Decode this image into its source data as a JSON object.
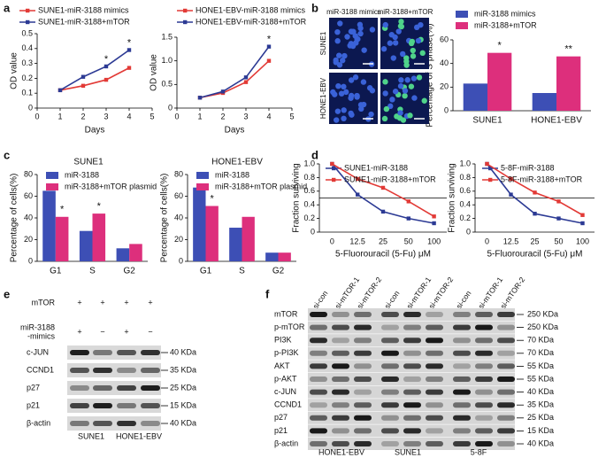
{
  "panel_labels": [
    "a",
    "b",
    "c",
    "d",
    "e",
    "f"
  ],
  "chart_data": [
    {
      "type": "line",
      "x": [
        1,
        2,
        3,
        4
      ],
      "xlim": [
        0,
        5
      ],
      "xticks": [
        0,
        1,
        2,
        3,
        4,
        5
      ],
      "ylim": [
        0,
        0.5
      ],
      "yticks": [
        0,
        0.1,
        0.2,
        0.3,
        0.4,
        0.5
      ],
      "x_label": "Days",
      "y_label": "OD value",
      "series": [
        {
          "name": "SUNE1-miR-3188 mimics",
          "color": "#e23a36",
          "values": [
            0.12,
            0.15,
            0.19,
            0.27
          ]
        },
        {
          "name": "SUNE1-miR-3188+mTOR",
          "color": "#2c3a94",
          "values": [
            0.12,
            0.21,
            0.28,
            0.39
          ]
        }
      ],
      "annotations": [
        {
          "text": "*",
          "series": 1,
          "index": 2
        },
        {
          "text": "*",
          "series": 1,
          "index": 3
        }
      ]
    },
    {
      "type": "line",
      "x": [
        1,
        2,
        3,
        4
      ],
      "xlim": [
        0,
        5
      ],
      "xticks": [
        0,
        1,
        2,
        3,
        4,
        5
      ],
      "ylim": [
        0,
        1.5
      ],
      "yticks": [
        0,
        0.5,
        {
          "value": 1,
          "label": "1.0"
        },
        1.5
      ],
      "x_label": "Days",
      "y_label": "OD value",
      "series": [
        {
          "name": "HONE1-EBV-miR-3188 mimics",
          "color": "#e23a36",
          "values": [
            0.22,
            0.32,
            0.55,
            1.0
          ]
        },
        {
          "name": "HONE1-EBV-miR-3188+mTOR",
          "color": "#2c3a94",
          "values": [
            0.22,
            0.35,
            0.65,
            1.3
          ]
        }
      ],
      "annotations": [
        {
          "text": "*",
          "series": 1,
          "index": 3
        }
      ]
    },
    {
      "type": "bar",
      "categories": [
        "SUNE1",
        "HONE1-EBV"
      ],
      "ylim": [
        0,
        60
      ],
      "yticks": [
        0,
        20,
        40,
        60
      ],
      "y_label": "Percentage of S phase(%)",
      "series": [
        {
          "name": "miR-3188 mimics",
          "color": "#3d4fb5",
          "values": [
            23,
            15
          ]
        },
        {
          "name": "miR-3188+mTOR",
          "color": "#dd2f7c",
          "values": [
            49,
            46
          ]
        }
      ],
      "annotations": [
        {
          "text": "*",
          "series": 1,
          "index": 0
        },
        {
          "text": "**",
          "series": 1,
          "index": 1
        }
      ]
    },
    {
      "type": "bar",
      "title": "SUNE1",
      "categories": [
        "G1",
        "S",
        "G2"
      ],
      "ylim": [
        0,
        80
      ],
      "yticks": [
        0,
        20,
        40,
        60,
        80
      ],
      "y_label": "Percentage of cells(%)",
      "series": [
        {
          "name": "miR-3188",
          "color": "#3d4fb5",
          "values": [
            65,
            28,
            12
          ]
        },
        {
          "name": "miR-3188+mTOR plasmid",
          "color": "#dd2f7c",
          "values": [
            41,
            44,
            16
          ]
        }
      ],
      "annotations": [
        {
          "text": "*",
          "series": 1,
          "index": 0
        },
        {
          "text": "*",
          "series": 1,
          "index": 1
        }
      ]
    },
    {
      "type": "bar",
      "title": "HONE1-EBV",
      "categories": [
        "G1",
        "S",
        "G2"
      ],
      "ylim": [
        0,
        80
      ],
      "yticks": [
        0,
        20,
        40,
        60,
        80
      ],
      "y_label": "Percentage of cells(%)",
      "series": [
        {
          "name": "miR-3188",
          "color": "#3d4fb5",
          "values": [
            68,
            31,
            8
          ]
        },
        {
          "name": "miR-3188+mTOR plasmid",
          "color": "#dd2f7c",
          "values": [
            51,
            41,
            8
          ]
        }
      ],
      "annotations": [
        {
          "text": "*",
          "series": 1,
          "index": 0
        }
      ]
    },
    {
      "type": "line",
      "categories": [
        "0",
        "12.5",
        "25",
        "50",
        "100"
      ],
      "ylim": [
        0,
        1
      ],
      "yticks": [
        0,
        0.2,
        0.4,
        0.6,
        0.8,
        {
          "value": 1,
          "label": "1.0"
        }
      ],
      "x_label": "5-Fluorouracil (5-Fu) μM",
      "y_label": "Fraction surviving",
      "reference_line": 0.5,
      "series": [
        {
          "name": "SUNE1-miR-3188",
          "color": "#2c3a94",
          "values": [
            1.0,
            0.55,
            0.3,
            0.2,
            0.13
          ]
        },
        {
          "name": "SUNE1-miR-3188+mTOR",
          "color": "#e23a36",
          "values": [
            1.0,
            0.78,
            0.65,
            0.45,
            0.23
          ]
        }
      ]
    },
    {
      "type": "line",
      "categories": [
        "0",
        "12.5",
        "25",
        "50",
        "100"
      ],
      "ylim": [
        0,
        1
      ],
      "yticks": [
        0,
        0.2,
        0.4,
        0.6,
        0.8,
        {
          "value": 1,
          "label": "1.0"
        }
      ],
      "x_label": "5-Fluorouracil (5-Fu) μM",
      "y_label": "Fraction surviving",
      "reference_line": 0.5,
      "series": [
        {
          "name": "5-8F-miR-3188",
          "color": "#2c3a94",
          "values": [
            1.0,
            0.55,
            0.27,
            0.2,
            0.13
          ]
        },
        {
          "name": "5-8F-miR-3188+mTOR",
          "color": "#e23a36",
          "values": [
            1.0,
            0.78,
            0.58,
            0.45,
            0.25
          ]
        }
      ]
    }
  ],
  "images": {
    "columns": [
      "miR-3188 mimics",
      "miR-3188+mTOR"
    ],
    "rows": [
      "SUNE1",
      "HONE1-EBV"
    ]
  },
  "blot_e": {
    "treatments": [
      {
        "label": [
          "mTOR"
        ],
        "signs": [
          "+",
          "+",
          "+",
          "+"
        ]
      },
      {
        "label": [
          "miR-3188",
          "-mimics"
        ],
        "signs": [
          "+",
          "−",
          "+",
          "−"
        ]
      }
    ],
    "proteins": [
      {
        "name": "c-JUN",
        "size": "40 KDa"
      },
      {
        "name": "CCND1",
        "size": "35 KDa"
      },
      {
        "name": "p27",
        "size": "25 KDa"
      },
      {
        "name": "p21",
        "size": "15 KDa"
      },
      {
        "name": "β-actin",
        "size": "40 KDa"
      }
    ],
    "cell_lines": [
      "SUNE1",
      "HONE1-EBV"
    ]
  },
  "blot_f": {
    "lanes": [
      "si-con",
      "si-mTOR-1",
      "si-mTOR-2",
      "si-con",
      "si-mTOR-1",
      "si-mTOR-2",
      "si-con",
      "si-mTOR-1",
      "si-mTOR-2"
    ],
    "proteins": [
      {
        "name": "mTOR",
        "size": "250 KDa"
      },
      {
        "name": "p-mTOR",
        "size": "250 KDa"
      },
      {
        "name": "PI3K",
        "size": "70 KDa"
      },
      {
        "name": "p-PI3K",
        "size": "70 KDa"
      },
      {
        "name": "AKT",
        "size": "55 KDa"
      },
      {
        "name": "p-AKT",
        "size": "55 KDa"
      },
      {
        "name": "c-JUN",
        "size": "40 KDa"
      },
      {
        "name": "CCND1",
        "size": "35 KDa"
      },
      {
        "name": "p27",
        "size": "25 KDa"
      },
      {
        "name": "p21",
        "size": "15 KDa"
      },
      {
        "name": "β-actin",
        "size": "40 KDa"
      }
    ],
    "cell_lines": [
      "HONE1-EBV",
      "SUNE1",
      "5-8F"
    ]
  }
}
